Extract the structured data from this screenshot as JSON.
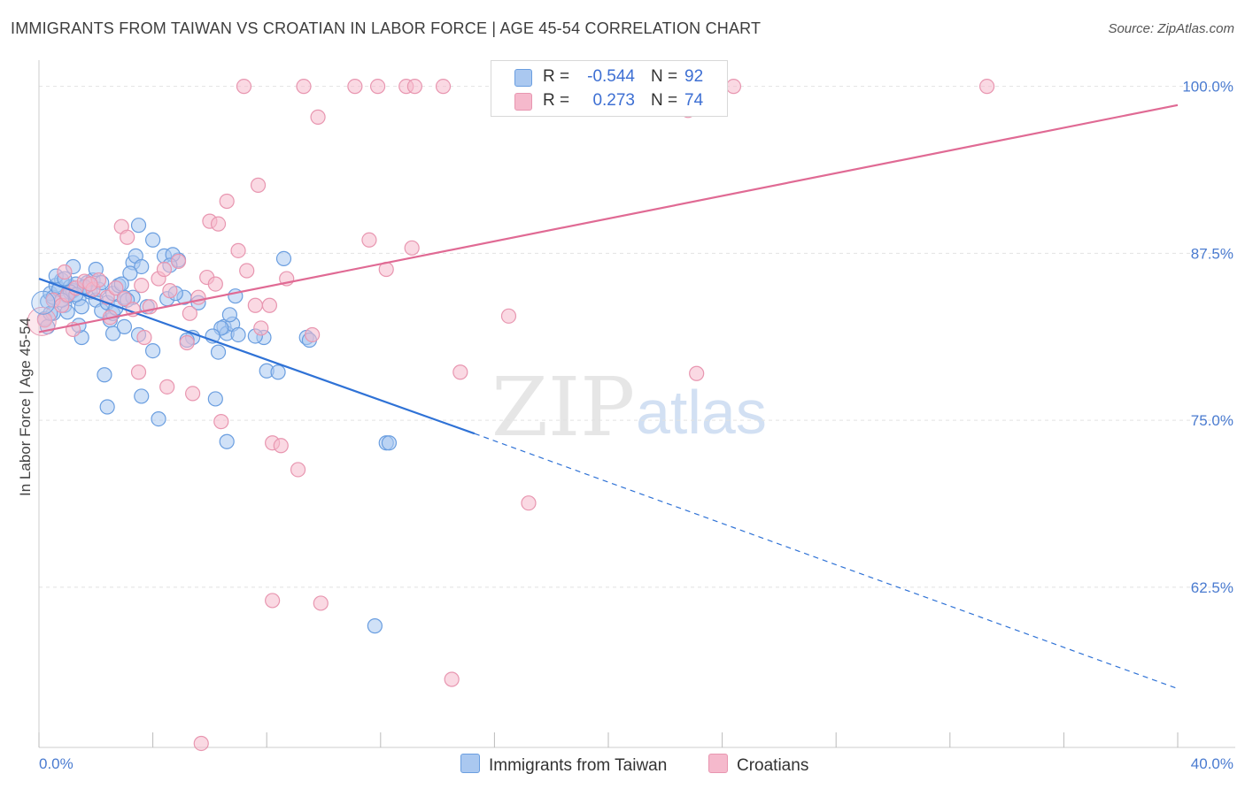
{
  "title": "IMMIGRANTS FROM TAIWAN VS CROATIAN IN LABOR FORCE | AGE 45-54 CORRELATION CHART",
  "source": "Source: ZipAtlas.com",
  "watermark": {
    "zip": "ZIP",
    "atlas": "atlas"
  },
  "legend": {
    "r_label": "R =",
    "n_label": "N =",
    "rows": [
      {
        "r": "-0.544",
        "n": "92"
      },
      {
        "r": "0.273",
        "n": "74"
      }
    ]
  },
  "bottom_legend": [
    "Immigrants from Taiwan",
    "Croatians"
  ],
  "colors": {
    "taiwan_fill": "#aac8f0",
    "taiwan_stroke": "#6a9ee0",
    "taiwan_line": "#2f72d6",
    "croatian_fill": "#f5b9cc",
    "croatian_stroke": "#e896b0",
    "croatian_line": "#e06a94",
    "tick_text": "#4a7bd0",
    "grid": "#e2e2e2"
  },
  "chart_data": {
    "type": "scatter",
    "title": "IMMIGRANTS FROM TAIWAN VS CROATIAN IN LABOR FORCE | AGE 45-54 CORRELATION CHART",
    "xlabel": "",
    "ylabel": "In Labor Force | Age 45-54",
    "xlim": [
      0,
      40
    ],
    "ylim": [
      50.5,
      101.5
    ],
    "x_ticks_labeled": [
      "0.0%",
      "40.0%"
    ],
    "y_ticks": [
      62.5,
      75.0,
      87.5,
      100.0
    ],
    "y_tick_labels": [
      "62.5%",
      "75.0%",
      "87.5%",
      "100.0%"
    ],
    "grid": "horizontal dashed",
    "legend_position": "top-center",
    "series": [
      {
        "name": "Immigrants from Taiwan",
        "r": -0.544,
        "n": 92,
        "trend": {
          "x0": 0,
          "y0": 85.6,
          "x1": 15.3,
          "y1": 74.0,
          "dashed_to_x": 40,
          "dashed_to_y": 54.9
        },
        "points": [
          [
            0.3,
            83.9
          ],
          [
            0.4,
            84.5
          ],
          [
            0.5,
            84.2
          ],
          [
            0.6,
            85.1
          ],
          [
            0.7,
            84.8
          ],
          [
            0.8,
            85.5
          ],
          [
            0.9,
            83.6
          ],
          [
            1.0,
            84.3
          ],
          [
            1.1,
            85.0
          ],
          [
            1.2,
            84.7
          ],
          [
            1.3,
            85.2
          ],
          [
            1.4,
            84.1
          ],
          [
            1.5,
            83.5
          ],
          [
            1.6,
            84.9
          ],
          [
            1.7,
            85.3
          ],
          [
            1.8,
            84.6
          ],
          [
            2.0,
            84.0
          ],
          [
            2.2,
            83.2
          ],
          [
            2.4,
            83.8
          ],
          [
            2.6,
            84.5
          ],
          [
            2.8,
            85.1
          ],
          [
            3.0,
            84.2
          ],
          [
            0.2,
            82.6
          ],
          [
            0.3,
            82.0
          ],
          [
            0.5,
            83.0
          ],
          [
            1.0,
            83.1
          ],
          [
            1.5,
            81.2
          ],
          [
            1.2,
            86.5
          ],
          [
            2.5,
            82.5
          ],
          [
            2.6,
            81.5
          ],
          [
            3.0,
            82.0
          ],
          [
            3.5,
            81.4
          ],
          [
            3.3,
            86.8
          ],
          [
            3.4,
            87.3
          ],
          [
            3.6,
            86.5
          ],
          [
            3.2,
            86.0
          ],
          [
            4.0,
            88.5
          ],
          [
            4.4,
            87.3
          ],
          [
            4.9,
            87.0
          ],
          [
            4.7,
            87.4
          ],
          [
            3.3,
            84.2
          ],
          [
            3.5,
            89.6
          ],
          [
            4.5,
            84.1
          ],
          [
            5.1,
            84.2
          ],
          [
            5.4,
            81.2
          ],
          [
            5.6,
            83.8
          ],
          [
            4.0,
            80.2
          ],
          [
            2.3,
            78.4
          ],
          [
            2.4,
            76.0
          ],
          [
            3.6,
            76.8
          ],
          [
            4.2,
            75.1
          ],
          [
            6.2,
            76.6
          ],
          [
            6.3,
            80.1
          ],
          [
            6.5,
            82.0
          ],
          [
            6.6,
            81.5
          ],
          [
            6.8,
            82.2
          ],
          [
            6.7,
            82.9
          ],
          [
            6.9,
            84.3
          ],
          [
            6.4,
            81.9
          ],
          [
            7.0,
            81.4
          ],
          [
            7.9,
            81.2
          ],
          [
            7.6,
            81.3
          ],
          [
            8.0,
            78.7
          ],
          [
            8.4,
            78.6
          ],
          [
            8.6,
            87.1
          ],
          [
            9.4,
            81.2
          ],
          [
            9.5,
            81.0
          ],
          [
            6.6,
            73.4
          ],
          [
            12.2,
            73.3
          ],
          [
            12.3,
            73.3
          ],
          [
            11.8,
            59.6
          ],
          [
            2.6,
            83.0
          ],
          [
            2.9,
            85.2
          ],
          [
            1.9,
            85.5
          ],
          [
            2.1,
            84.8
          ],
          [
            4.6,
            86.6
          ],
          [
            0.6,
            85.8
          ],
          [
            1.1,
            84.6
          ],
          [
            3.1,
            84.0
          ],
          [
            2.7,
            83.4
          ],
          [
            0.4,
            83.0
          ],
          [
            0.8,
            84.0
          ],
          [
            1.6,
            85.0
          ],
          [
            2.2,
            85.3
          ],
          [
            0.9,
            85.6
          ],
          [
            1.3,
            84.4
          ],
          [
            5.2,
            81.0
          ],
          [
            6.1,
            81.3
          ],
          [
            4.8,
            84.5
          ],
          [
            2.0,
            86.3
          ],
          [
            3.8,
            83.5
          ],
          [
            1.4,
            82.1
          ]
        ]
      },
      {
        "name": "Croatians",
        "r": 0.273,
        "n": 74,
        "trend": {
          "x0": 0,
          "y0": 81.6,
          "x1": 40,
          "y1": 98.6
        },
        "points": [
          [
            0.2,
            82.5
          ],
          [
            0.5,
            84.0
          ],
          [
            0.8,
            83.6
          ],
          [
            1.0,
            84.4
          ],
          [
            1.3,
            84.9
          ],
          [
            1.6,
            85.4
          ],
          [
            1.9,
            84.8
          ],
          [
            2.1,
            85.5
          ],
          [
            2.4,
            84.2
          ],
          [
            2.7,
            84.9
          ],
          [
            3.0,
            84.1
          ],
          [
            3.3,
            83.3
          ],
          [
            3.6,
            85.1
          ],
          [
            3.9,
            83.5
          ],
          [
            4.2,
            85.6
          ],
          [
            4.6,
            84.7
          ],
          [
            4.9,
            86.9
          ],
          [
            5.3,
            83.0
          ],
          [
            5.6,
            84.2
          ],
          [
            5.9,
            85.7
          ],
          [
            6.2,
            85.2
          ],
          [
            2.9,
            89.5
          ],
          [
            3.1,
            88.7
          ],
          [
            6.0,
            89.9
          ],
          [
            6.3,
            89.7
          ],
          [
            6.6,
            91.4
          ],
          [
            7.7,
            92.6
          ],
          [
            7.0,
            87.7
          ],
          [
            7.3,
            86.2
          ],
          [
            4.4,
            86.3
          ],
          [
            8.7,
            85.6
          ],
          [
            7.6,
            83.6
          ],
          [
            7.8,
            81.9
          ],
          [
            8.1,
            83.6
          ],
          [
            5.2,
            80.8
          ],
          [
            5.4,
            77.0
          ],
          [
            4.5,
            77.5
          ],
          [
            3.5,
            78.6
          ],
          [
            6.4,
            74.9
          ],
          [
            8.2,
            73.3
          ],
          [
            8.5,
            73.1
          ],
          [
            9.1,
            71.3
          ],
          [
            9.6,
            81.4
          ],
          [
            11.6,
            88.5
          ],
          [
            12.2,
            86.3
          ],
          [
            13.1,
            87.9
          ],
          [
            14.8,
            78.6
          ],
          [
            16.5,
            82.8
          ],
          [
            17.2,
            68.8
          ],
          [
            23.1,
            78.5
          ],
          [
            7.2,
            100.0
          ],
          [
            9.3,
            100.0
          ],
          [
            11.1,
            100.0
          ],
          [
            11.9,
            100.0
          ],
          [
            12.9,
            100.0
          ],
          [
            13.2,
            100.0
          ],
          [
            14.2,
            100.0
          ],
          [
            16.2,
            100.0
          ],
          [
            17.5,
            100.0
          ],
          [
            21.8,
            100.0
          ],
          [
            22.7,
            100.0
          ],
          [
            24.4,
            100.0
          ],
          [
            33.3,
            100.0
          ],
          [
            22.8,
            98.2
          ],
          [
            9.8,
            97.7
          ],
          [
            8.2,
            61.5
          ],
          [
            9.9,
            61.3
          ],
          [
            14.5,
            55.6
          ],
          [
            5.7,
            50.8
          ],
          [
            1.2,
            81.8
          ],
          [
            2.5,
            82.7
          ],
          [
            0.9,
            86.1
          ],
          [
            1.8,
            85.2
          ],
          [
            3.7,
            81.2
          ]
        ]
      }
    ]
  }
}
